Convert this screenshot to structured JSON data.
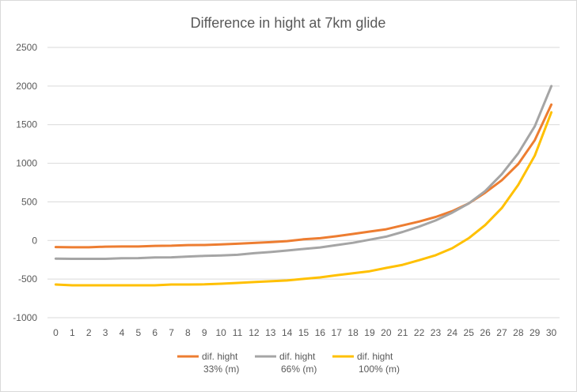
{
  "chart_data": {
    "type": "line",
    "title": "Difference in hight at 7km glide",
    "xlabel": "",
    "ylabel": "",
    "x": [
      0,
      1,
      2,
      3,
      4,
      5,
      6,
      7,
      8,
      9,
      10,
      11,
      12,
      13,
      14,
      15,
      16,
      17,
      18,
      19,
      20,
      21,
      22,
      23,
      24,
      25,
      26,
      27,
      28,
      29,
      30
    ],
    "ylim": [
      -1000,
      2500
    ],
    "yticks": [
      -1000,
      -500,
      0,
      500,
      1000,
      1500,
      2000,
      2500
    ],
    "grid": true,
    "legend_position": "bottom",
    "series": [
      {
        "name": "dif. hight 33% (m)",
        "name_lines": [
          "dif. hight",
          "33% (m)"
        ],
        "color": "#ED7D31",
        "values": [
          -85,
          -88,
          -88,
          -80,
          -78,
          -78,
          -70,
          -68,
          -60,
          -58,
          -50,
          -42,
          -32,
          -22,
          -8,
          15,
          30,
          55,
          85,
          115,
          145,
          195,
          245,
          305,
          380,
          480,
          620,
          780,
          990,
          1300,
          1760
        ]
      },
      {
        "name": "dif. hight 66% (m)",
        "name_lines": [
          "dif. hight",
          "66% (m)"
        ],
        "color": "#A5A5A5",
        "values": [
          -235,
          -238,
          -238,
          -238,
          -230,
          -228,
          -220,
          -218,
          -208,
          -200,
          -195,
          -185,
          -165,
          -150,
          -130,
          -110,
          -90,
          -60,
          -30,
          10,
          50,
          110,
          180,
          260,
          360,
          480,
          640,
          860,
          1130,
          1480,
          2000
        ]
      },
      {
        "name": "dif. hight 100% (m)",
        "name_lines": [
          "dif. hight",
          "100% (m)"
        ],
        "color": "#FFC000",
        "values": [
          -570,
          -580,
          -580,
          -580,
          -580,
          -580,
          -580,
          -570,
          -570,
          -568,
          -560,
          -550,
          -538,
          -528,
          -518,
          -498,
          -478,
          -450,
          -425,
          -398,
          -355,
          -315,
          -255,
          -190,
          -100,
          30,
          200,
          420,
          720,
          1100,
          1660
        ]
      }
    ]
  }
}
